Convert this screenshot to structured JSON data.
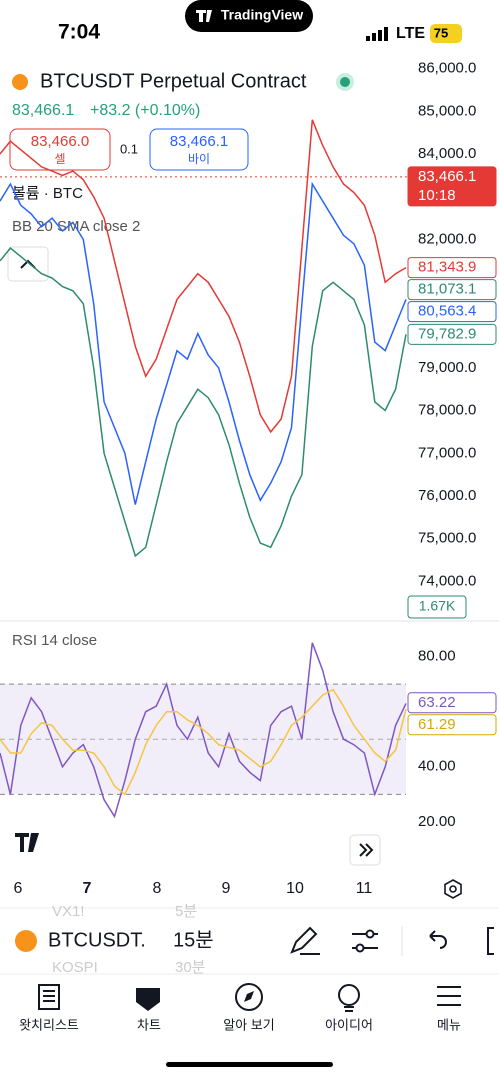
{
  "status": {
    "time": "7:04",
    "app": "TradingView",
    "network": "LTE",
    "battery": "75"
  },
  "header": {
    "title": "BTCUSDT Perpetual Contract",
    "quote": "83,466.1",
    "change": "+83.2 (+0.10%)",
    "sell_price": "83,466.0",
    "sell": "셀",
    "spread": "0.1",
    "buy_price": "83,466.1",
    "buy": "바이",
    "volume_label": "볼륨 · BTC",
    "bb_label": "BB 20 SMA close 2",
    "volume_tag": "1.67K"
  },
  "chart_data": [
    {
      "type": "line",
      "ylim": [
        73100,
        86200
      ],
      "yticks": [
        {
          "value": 86000,
          "label": "86,000.0"
        },
        {
          "value": 85000,
          "label": "85,000.0"
        },
        {
          "value": 84000,
          "label": "84,000.0"
        },
        {
          "value": 82000,
          "label": "82,000.0"
        },
        {
          "value": 79000,
          "label": "79,000.0"
        },
        {
          "value": 78000,
          "label": "78,000.0"
        },
        {
          "value": 77000,
          "label": "77,000.0"
        },
        {
          "value": 76000,
          "label": "76,000.0"
        },
        {
          "value": 75000,
          "label": "75,000.0"
        },
        {
          "value": 74000,
          "label": "74,000.0"
        }
      ],
      "series": [
        {
          "color": "#e53935",
          "values": [
            84000,
            84300,
            84100,
            83900,
            83700,
            83600,
            83500,
            83600,
            83400,
            83000,
            82500,
            81500,
            80500,
            79500,
            78800,
            79200,
            79900,
            80600,
            80900,
            81200,
            81000,
            80600,
            80200,
            79600,
            78800,
            77900,
            77500,
            77800,
            78800,
            81800,
            84800,
            84200,
            83700,
            83300,
            83100,
            82800,
            82100,
            81000,
            81200,
            81344
          ]
        },
        {
          "color": "#2962ff",
          "values": [
            82900,
            83300,
            82800,
            82600,
            82300,
            82500,
            82200,
            82400,
            82000,
            80500,
            78200,
            77600,
            77000,
            75800,
            76800,
            77800,
            78600,
            79400,
            79200,
            79800,
            79300,
            79000,
            78200,
            77300,
            76500,
            75900,
            76300,
            76800,
            77600,
            80500,
            83300,
            82900,
            82500,
            82100,
            81900,
            81400,
            79600,
            79400,
            80000,
            80600
          ]
        },
        {
          "color": "#2e8b70",
          "values": [
            81500,
            81800,
            81600,
            81400,
            81200,
            81100,
            80900,
            80800,
            80500,
            79000,
            77000,
            76200,
            75400,
            74600,
            74800,
            75800,
            76800,
            77700,
            78100,
            78500,
            78300,
            77900,
            77200,
            76300,
            75500,
            74900,
            74800,
            75300,
            76000,
            76500,
            79500,
            80800,
            81000,
            80800,
            80600,
            80000,
            78200,
            78000,
            78500,
            79783
          ]
        }
      ],
      "last_price": 83466.1,
      "price_tags": [
        {
          "value": 83466.1,
          "label": "83,466.1",
          "sub": "10:18",
          "color": "#e53935",
          "filled": true
        },
        {
          "value": 81343.9,
          "label": "81,343.9",
          "color": "#e53935"
        },
        {
          "value": 81073.1,
          "label": "81,073.1",
          "color": "#2e8b70"
        },
        {
          "value": 80563.4,
          "label": "80,563.4",
          "color": "#2962ff"
        },
        {
          "value": 79782.9,
          "label": "79,782.9",
          "color": "#2e8b70"
        }
      ]
    },
    {
      "type": "line",
      "title": "RSI 14 close",
      "ylim": [
        0,
        90
      ],
      "yticks": [
        {
          "value": 80,
          "label": "80.00"
        },
        {
          "value": 40,
          "label": "40.00"
        },
        {
          "value": 20,
          "label": "20.00"
        }
      ],
      "band": [
        30,
        70
      ],
      "midline": 50,
      "series": [
        {
          "color": "#7e57c2",
          "values": [
            45,
            30,
            55,
            65,
            60,
            50,
            40,
            45,
            48,
            40,
            28,
            22,
            35,
            50,
            60,
            62,
            70,
            55,
            50,
            58,
            45,
            40,
            52,
            42,
            38,
            35,
            55,
            60,
            62,
            50,
            85,
            75,
            60,
            50,
            48,
            45,
            30,
            40,
            55,
            63
          ]
        },
        {
          "color": "#f5c542",
          "values": [
            50,
            45,
            45,
            52,
            56,
            55,
            50,
            46,
            46,
            45,
            40,
            33,
            30,
            38,
            48,
            55,
            60,
            60,
            57,
            55,
            52,
            48,
            47,
            46,
            43,
            40,
            42,
            48,
            55,
            58,
            62,
            66,
            68,
            62,
            55,
            50,
            45,
            42,
            46,
            61
          ]
        }
      ],
      "price_tags": [
        {
          "value": 63.22,
          "label": "63.22",
          "color": "#7e57c2"
        },
        {
          "value": 61.29,
          "label": "61.29",
          "color": "#d4a800"
        }
      ]
    }
  ],
  "dates": [
    "6",
    "7",
    "8",
    "9",
    "10",
    "11"
  ],
  "toolbar": {
    "symbol": "BTCUSDT.",
    "interval": "15분",
    "ghost": [
      "VX1!",
      "5분",
      "KOSPI",
      "30분"
    ]
  },
  "nav": [
    "왓치리스트",
    "차트",
    "알아 보기",
    "아이디어",
    "메뉴"
  ]
}
